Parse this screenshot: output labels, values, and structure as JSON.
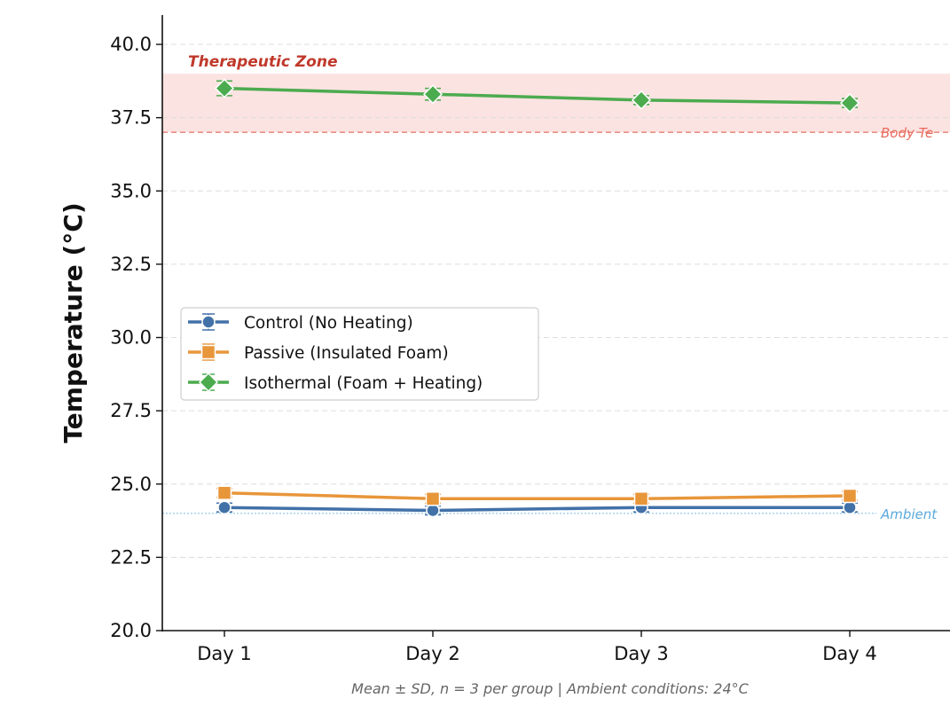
{
  "chart_data": {
    "type": "line",
    "categories": [
      "Day 1",
      "Day 2",
      "Day 3",
      "Day 4"
    ],
    "ylabel": "Temperature (°C)",
    "ylim": [
      20.0,
      41.0
    ],
    "yticks": [
      "20.0",
      "22.5",
      "25.0",
      "27.5",
      "30.0",
      "32.5",
      "35.0",
      "37.5",
      "40.0"
    ],
    "grid": "horizontal dashed",
    "legend_position": "center-left",
    "series": [
      {
        "name": "Control (No Heating)",
        "values": [
          24.2,
          24.1,
          24.2,
          24.2
        ],
        "sd": [
          0.15,
          0.15,
          0.15,
          0.15
        ],
        "color": "#4271a8",
        "marker": "circle"
      },
      {
        "name": "Passive (Insulated Foam)",
        "values": [
          24.7,
          24.5,
          24.5,
          24.6
        ],
        "sd": [
          0.15,
          0.15,
          0.15,
          0.15
        ],
        "color": "#e8963a",
        "marker": "square"
      },
      {
        "name": "Isothermal (Foam + Heating)",
        "values": [
          38.5,
          38.3,
          38.1,
          38.0
        ],
        "sd": [
          0.25,
          0.2,
          0.15,
          0.15
        ],
        "color": "#4cab4f",
        "marker": "diamond"
      }
    ],
    "zone": {
      "label": "Therapeutic Zone",
      "from": 37.0,
      "to": 39.0,
      "color": "#fbe3e1",
      "label_color": "#c0392b"
    },
    "reference_lines": [
      {
        "label": "Body Te",
        "value": 37.0,
        "color": "#e86a5e"
      },
      {
        "label": "Ambient",
        "value": 24.0,
        "color": "#5aa9dc"
      }
    ],
    "footnote": "Mean ± SD,  n = 3 per group  |  Ambient conditions: 24°C"
  }
}
